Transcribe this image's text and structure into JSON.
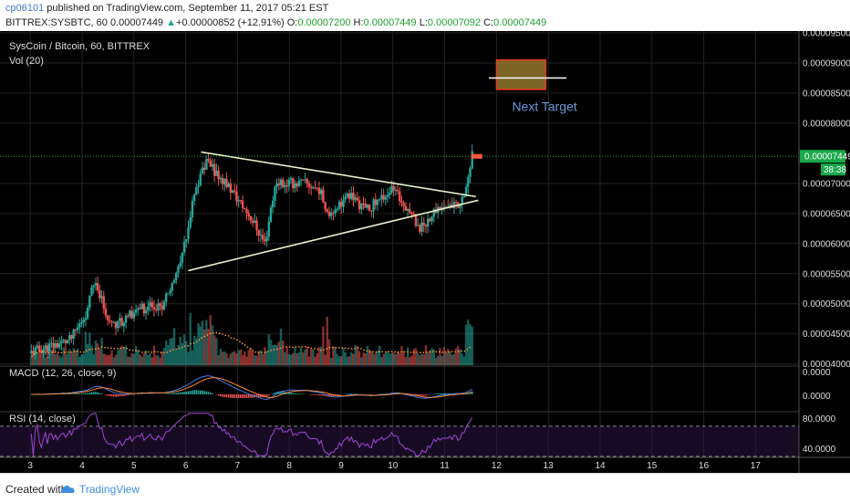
{
  "header": {
    "username": "cp06101",
    "published_text": "published on TradingView.com, September 11, 2017 05:21 EST",
    "symbol_text": "BITTREX:SYSBTC, 60",
    "last": "0.00007449",
    "change_arrow": "▲",
    "change": "+0.00000852 (+12.91%)",
    "o_label": "O:",
    "o_value": "0.00007200",
    "h_label": "H:",
    "h_value": "0.00007449",
    "l_label": "L:",
    "l_value": "0.00007092",
    "c_label": "C:",
    "c_value": "0.00007449"
  },
  "footer": {
    "created_with": "Created with",
    "brand": "TradingView"
  },
  "colors": {
    "up": "#26a69a",
    "down": "#ef5350",
    "background": "#000000",
    "grid": "#242424",
    "accent": "#3d8ee0",
    "current_price": "#1aa84a"
  },
  "chart_data": [
    {
      "type": "candlestick",
      "title": "SysCoin / Bitcoin, 60, BITTREX",
      "legend": "Vol (20)",
      "x_ticks": [
        "3",
        "4",
        "5",
        "6",
        "7",
        "8",
        "9",
        "10",
        "11",
        "12",
        "13",
        "14",
        "15",
        "16",
        "17"
      ],
      "y_ticks": [
        "0.00009500",
        "0.00009000",
        "0.00008500",
        "0.00008000",
        "0.00007449",
        "0.00007000",
        "0.00006500",
        "0.00006000",
        "0.00005500",
        "0.00005000",
        "0.00004500",
        "0.00004000"
      ],
      "ylim": [
        3.98e-05,
        9.53e-05
      ],
      "current_price_label": "0.00007449",
      "countdown_label": "38:38",
      "anchor_series": [
        {
          "day": 3.0,
          "price": 4.18e-05
        },
        {
          "day": 3.8,
          "price": 4.4e-05
        },
        {
          "day": 4.1,
          "price": 4.85e-05
        },
        {
          "day": 4.25,
          "price": 5.4e-05
        },
        {
          "day": 4.6,
          "price": 4.6e-05
        },
        {
          "day": 5.1,
          "price": 4.9e-05
        },
        {
          "day": 5.6,
          "price": 5e-05
        },
        {
          "day": 5.9,
          "price": 5.6e-05
        },
        {
          "day": 6.2,
          "price": 6.85e-05
        },
        {
          "day": 6.4,
          "price": 7.35e-05
        },
        {
          "day": 6.8,
          "price": 7e-05
        },
        {
          "day": 7.3,
          "price": 6.4e-05
        },
        {
          "day": 7.55,
          "price": 6e-05
        },
        {
          "day": 7.75,
          "price": 7e-05
        },
        {
          "day": 8.3,
          "price": 7e-05
        },
        {
          "day": 8.6,
          "price": 6.9e-05
        },
        {
          "day": 8.75,
          "price": 6.5e-05
        },
        {
          "day": 9.2,
          "price": 6.8e-05
        },
        {
          "day": 9.5,
          "price": 6.55e-05
        },
        {
          "day": 10.0,
          "price": 6.9e-05
        },
        {
          "day": 10.3,
          "price": 6.6e-05
        },
        {
          "day": 10.55,
          "price": 6.25e-05
        },
        {
          "day": 10.9,
          "price": 6.6e-05
        },
        {
          "day": 11.3,
          "price": 6.65e-05
        },
        {
          "day": 11.45,
          "price": 7e-05
        },
        {
          "day": 11.55,
          "price": 7.45e-05
        }
      ],
      "trendlines": [
        {
          "name": "upper-triangle-line",
          "from": [
            6.3,
            7.52e-05
          ],
          "to": [
            11.6,
            6.78e-05
          ]
        },
        {
          "name": "lower-triangle-line",
          "from": [
            6.05,
            5.55e-05
          ],
          "to": [
            11.65,
            6.72e-05
          ]
        },
        {
          "name": "target-line",
          "from": [
            11.85,
            8.75e-05
          ],
          "to": [
            13.35,
            8.75e-05
          ]
        }
      ],
      "target_box": {
        "x": [
          12.0,
          12.95
        ],
        "y": [
          8.56e-05,
          9.05e-05
        ],
        "label": "Next Target"
      }
    },
    {
      "type": "line",
      "title": "MACD (12, 26, close, 9)",
      "y_ticks": [
        "0.0000",
        "0.0000"
      ]
    },
    {
      "type": "line",
      "title": "RSI (14, close)",
      "y_ticks": [
        "80.0000",
        "40.0000"
      ],
      "ylim": [
        30,
        88
      ],
      "bands": [
        70,
        30
      ]
    }
  ]
}
